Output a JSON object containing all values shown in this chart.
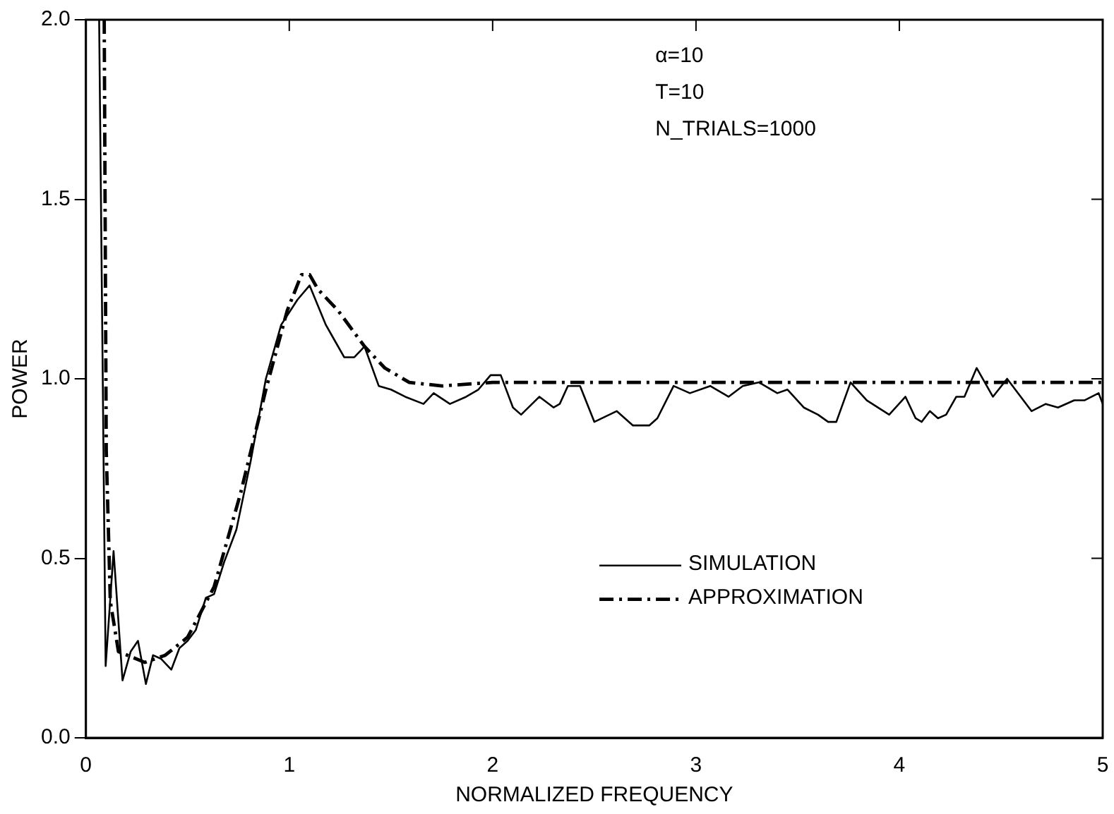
{
  "chart_data": {
    "type": "line",
    "xlabel": "NORMALIZED FREQUENCY",
    "ylabel": "POWER",
    "xlim": [
      0,
      5
    ],
    "ylim": [
      0,
      2
    ],
    "xticks": [
      0,
      1,
      2,
      3,
      4,
      5
    ],
    "yticks": [
      {
        "value": 0,
        "label": "0.0"
      },
      {
        "value": 0.5,
        "label": "0.5"
      },
      {
        "value": 1,
        "label": "1.0"
      },
      {
        "value": 1.5,
        "label": "1.5"
      },
      {
        "value": 2,
        "label": "2.0"
      }
    ],
    "grid": false,
    "legend": "bottom right",
    "marker": "none",
    "annotations": [
      "α=10",
      "T=10",
      "N_TRIALS=1000"
    ],
    "series": [
      {
        "name": "SIMULATION",
        "color": "#000000",
        "line_style": "solid",
        "x": [
          0.065,
          0.097,
          0.136,
          0.18,
          0.22,
          0.256,
          0.295,
          0.33,
          0.37,
          0.42,
          0.46,
          0.5,
          0.54,
          0.59,
          0.63,
          0.68,
          0.74,
          0.81,
          0.885,
          0.96,
          1.04,
          1.1,
          1.18,
          1.22,
          1.27,
          1.32,
          1.37,
          1.44,
          1.5,
          1.57,
          1.66,
          1.71,
          1.79,
          1.87,
          1.93,
          1.99,
          2.04,
          2.1,
          2.14,
          2.23,
          2.3,
          2.33,
          2.37,
          2.43,
          2.5,
          2.61,
          2.69,
          2.77,
          2.81,
          2.89,
          2.97,
          3.07,
          3.16,
          3.23,
          3.31,
          3.4,
          3.45,
          3.53,
          3.6,
          3.65,
          3.69,
          3.76,
          3.84,
          3.95,
          4.03,
          4.08,
          4.11,
          4.15,
          4.19,
          4.23,
          4.28,
          4.32,
          4.38,
          4.46,
          4.53,
          4.65,
          4.72,
          4.78,
          4.86,
          4.91,
          4.98,
          5.0
        ],
        "values": [
          2.0,
          0.2,
          0.52,
          0.16,
          0.24,
          0.27,
          0.15,
          0.23,
          0.22,
          0.19,
          0.25,
          0.27,
          0.3,
          0.39,
          0.4,
          0.49,
          0.58,
          0.77,
          1.0,
          1.15,
          1.22,
          1.26,
          1.15,
          1.11,
          1.06,
          1.06,
          1.09,
          0.98,
          0.97,
          0.95,
          0.93,
          0.96,
          0.93,
          0.95,
          0.97,
          1.01,
          1.01,
          0.92,
          0.9,
          0.95,
          0.92,
          0.93,
          0.98,
          0.98,
          0.88,
          0.91,
          0.87,
          0.87,
          0.89,
          0.98,
          0.96,
          0.98,
          0.95,
          0.98,
          0.99,
          0.96,
          0.97,
          0.92,
          0.9,
          0.88,
          0.88,
          0.99,
          0.94,
          0.9,
          0.95,
          0.89,
          0.88,
          0.91,
          0.89,
          0.9,
          0.95,
          0.95,
          1.03,
          0.95,
          1.0,
          0.91,
          0.93,
          0.92,
          0.94,
          0.94,
          0.96,
          0.93
        ]
      },
      {
        "name": "APPROXIMATION",
        "color": "#000000",
        "line_style": "dashdot",
        "x": [
          0.09,
          0.1,
          0.12,
          0.16,
          0.29,
          0.39,
          0.5,
          0.63,
          0.76,
          0.885,
          0.99,
          1.06,
          1.1,
          1.14,
          1.24,
          1.37,
          1.47,
          1.59,
          1.75,
          2.0,
          2.5,
          3.0,
          3.5,
          4.0,
          4.5,
          5.0
        ],
        "values": [
          2.0,
          0.8,
          0.38,
          0.24,
          0.21,
          0.23,
          0.28,
          0.42,
          0.68,
          0.97,
          1.19,
          1.29,
          1.29,
          1.25,
          1.19,
          1.09,
          1.03,
          0.99,
          0.98,
          0.99,
          0.99,
          0.99,
          0.99,
          0.99,
          0.99,
          0.99
        ]
      }
    ]
  }
}
